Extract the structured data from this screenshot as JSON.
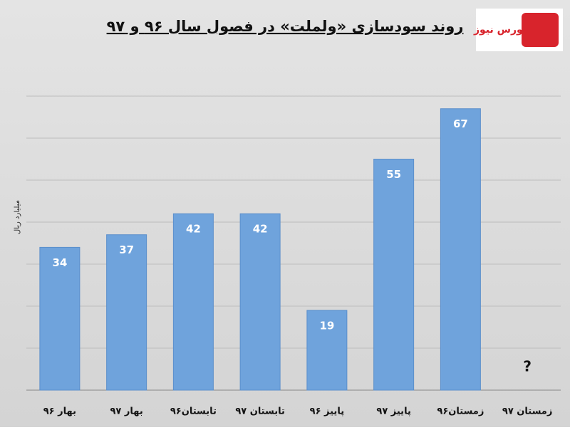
{
  "chart_data": {
    "type": "bar",
    "title": "روند سودسازی «ولملت» در فصول سال ۹۶ و ۹۷",
    "y_label": "میلیارد ریال",
    "logo_text": "بورس نیوز",
    "categories": [
      "بهار ۹۶",
      "بهار ۹۷",
      "تابستان۹۶",
      "تابستان ۹۷",
      "پاییز ۹۶",
      "پاییز ۹۷",
      "زمستان۹۶",
      "زمستان ۹۷"
    ],
    "values": [
      34,
      37,
      42,
      42,
      19,
      55,
      67,
      null
    ],
    "annotation": "?",
    "color": "#6fa3dc",
    "ylim": [
      0,
      70
    ],
    "yticks": [
      0,
      10,
      20,
      30,
      40,
      50,
      60,
      70
    ],
    "grid": true
  }
}
